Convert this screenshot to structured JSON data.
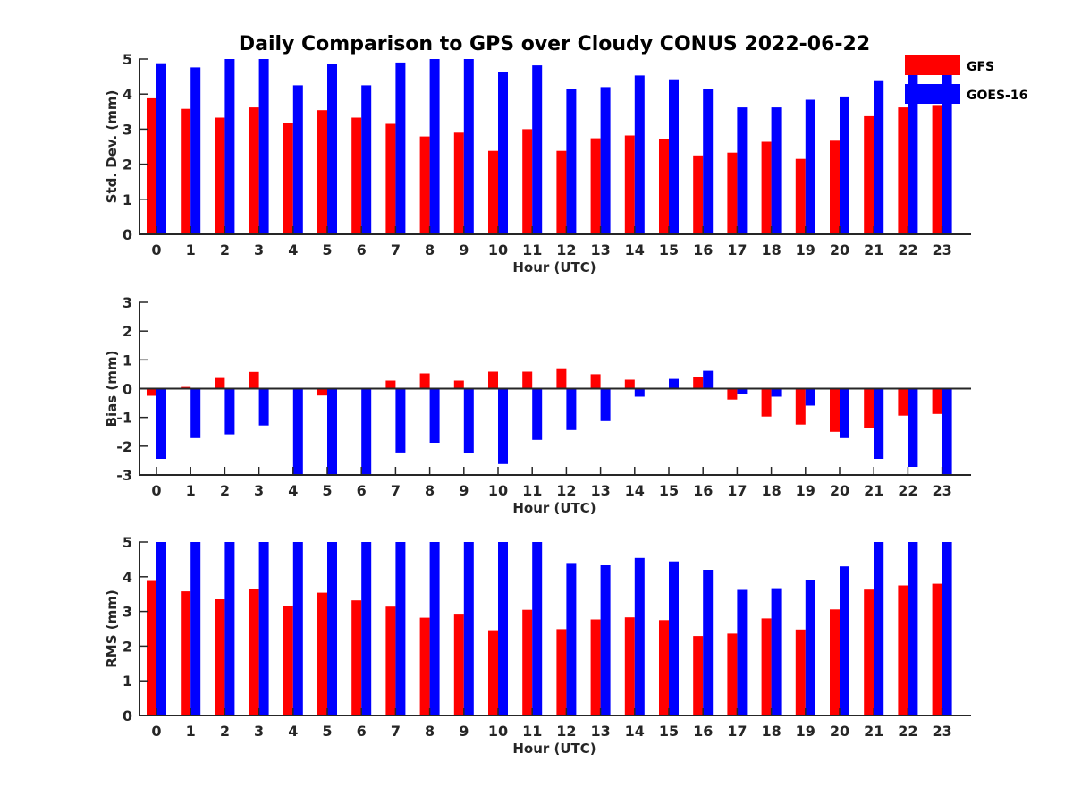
{
  "figure": {
    "title": "Daily Comparison to GPS over Cloudy CONUS 2022-06-22"
  },
  "legend": [
    {
      "name": "GFS",
      "color": "#ff0000"
    },
    {
      "name": "GOES-16",
      "color": "#0000ff"
    }
  ],
  "chart_data": [
    {
      "type": "bar",
      "title": "Daily Comparison to GPS over Cloudy CONUS 2022-06-22",
      "xlabel": "Hour (UTC)",
      "ylabel": "Std. Dev. (mm)",
      "ylim": [
        0,
        5
      ],
      "yticks": [
        0,
        1,
        2,
        3,
        4,
        5
      ],
      "categories": [
        "0",
        "1",
        "2",
        "3",
        "4",
        "5",
        "6",
        "7",
        "8",
        "9",
        "10",
        "11",
        "12",
        "13",
        "14",
        "15",
        "16",
        "17",
        "18",
        "19",
        "20",
        "21",
        "22",
        "23"
      ],
      "legend_position": "top-right",
      "series": [
        {
          "name": "GFS",
          "color": "#ff0000",
          "values": [
            3.88,
            3.58,
            3.33,
            3.62,
            3.18,
            3.54,
            3.33,
            3.15,
            2.79,
            2.9,
            2.38,
            3.0,
            2.38,
            2.74,
            2.82,
            2.73,
            2.25,
            2.33,
            2.64,
            2.15,
            2.67,
            3.37,
            3.62,
            3.69
          ]
        },
        {
          "name": "GOES-16",
          "color": "#0000ff",
          "values": [
            4.88,
            4.76,
            5.0,
            5.0,
            4.25,
            4.86,
            4.25,
            4.9,
            5.0,
            5.0,
            4.64,
            4.82,
            4.14,
            4.2,
            4.53,
            4.42,
            4.14,
            3.62,
            3.62,
            3.84,
            3.93,
            4.37,
            4.74,
            4.6
          ]
        }
      ]
    },
    {
      "type": "bar",
      "xlabel": "Hour (UTC)",
      "ylabel": "Bias (mm)",
      "ylim": [
        -3,
        3
      ],
      "yticks": [
        -3,
        -2,
        -1,
        0,
        1,
        2,
        3
      ],
      "categories": [
        "0",
        "1",
        "2",
        "3",
        "4",
        "5",
        "6",
        "7",
        "8",
        "9",
        "10",
        "11",
        "12",
        "13",
        "14",
        "15",
        "16",
        "17",
        "18",
        "19",
        "20",
        "21",
        "22",
        "23"
      ],
      "series": [
        {
          "name": "GFS",
          "color": "#ff0000",
          "values": [
            -0.25,
            0.06,
            0.37,
            0.58,
            -0.03,
            -0.24,
            -0.03,
            0.28,
            0.53,
            0.28,
            0.59,
            0.59,
            0.71,
            0.5,
            0.31,
            -0.03,
            0.41,
            -0.38,
            -0.97,
            -1.25,
            -1.5,
            -1.38,
            -0.94,
            -0.88
          ]
        },
        {
          "name": "GOES-16",
          "color": "#0000ff",
          "values": [
            -2.44,
            -1.72,
            -1.59,
            -1.28,
            -3.0,
            -3.0,
            -3.0,
            -2.22,
            -1.88,
            -2.25,
            -2.62,
            -1.78,
            -1.44,
            -1.13,
            -0.28,
            0.34,
            0.62,
            -0.19,
            -0.28,
            -0.59,
            -1.72,
            -2.44,
            -2.72,
            -3.0
          ]
        }
      ]
    },
    {
      "type": "bar",
      "xlabel": "Hour (UTC)",
      "ylabel": "RMS (mm)",
      "ylim": [
        0,
        5
      ],
      "yticks": [
        0,
        1,
        2,
        3,
        4,
        5
      ],
      "categories": [
        "0",
        "1",
        "2",
        "3",
        "4",
        "5",
        "6",
        "7",
        "8",
        "9",
        "10",
        "11",
        "12",
        "13",
        "14",
        "15",
        "16",
        "17",
        "18",
        "19",
        "20",
        "21",
        "22",
        "23"
      ],
      "series": [
        {
          "name": "GFS",
          "color": "#ff0000",
          "values": [
            3.88,
            3.58,
            3.35,
            3.66,
            3.17,
            3.54,
            3.32,
            3.14,
            2.82,
            2.91,
            2.46,
            3.05,
            2.49,
            2.77,
            2.83,
            2.75,
            2.29,
            2.36,
            2.8,
            2.48,
            3.06,
            3.63,
            3.75,
            3.8
          ]
        },
        {
          "name": "GOES-16",
          "color": "#0000ff",
          "values": [
            5.0,
            5.0,
            5.0,
            5.0,
            5.0,
            5.0,
            5.0,
            5.0,
            5.0,
            5.0,
            5.0,
            5.0,
            4.37,
            4.33,
            4.54,
            4.44,
            4.2,
            3.62,
            3.67,
            3.9,
            4.3,
            5.0,
            5.0,
            5.0
          ]
        }
      ]
    }
  ]
}
